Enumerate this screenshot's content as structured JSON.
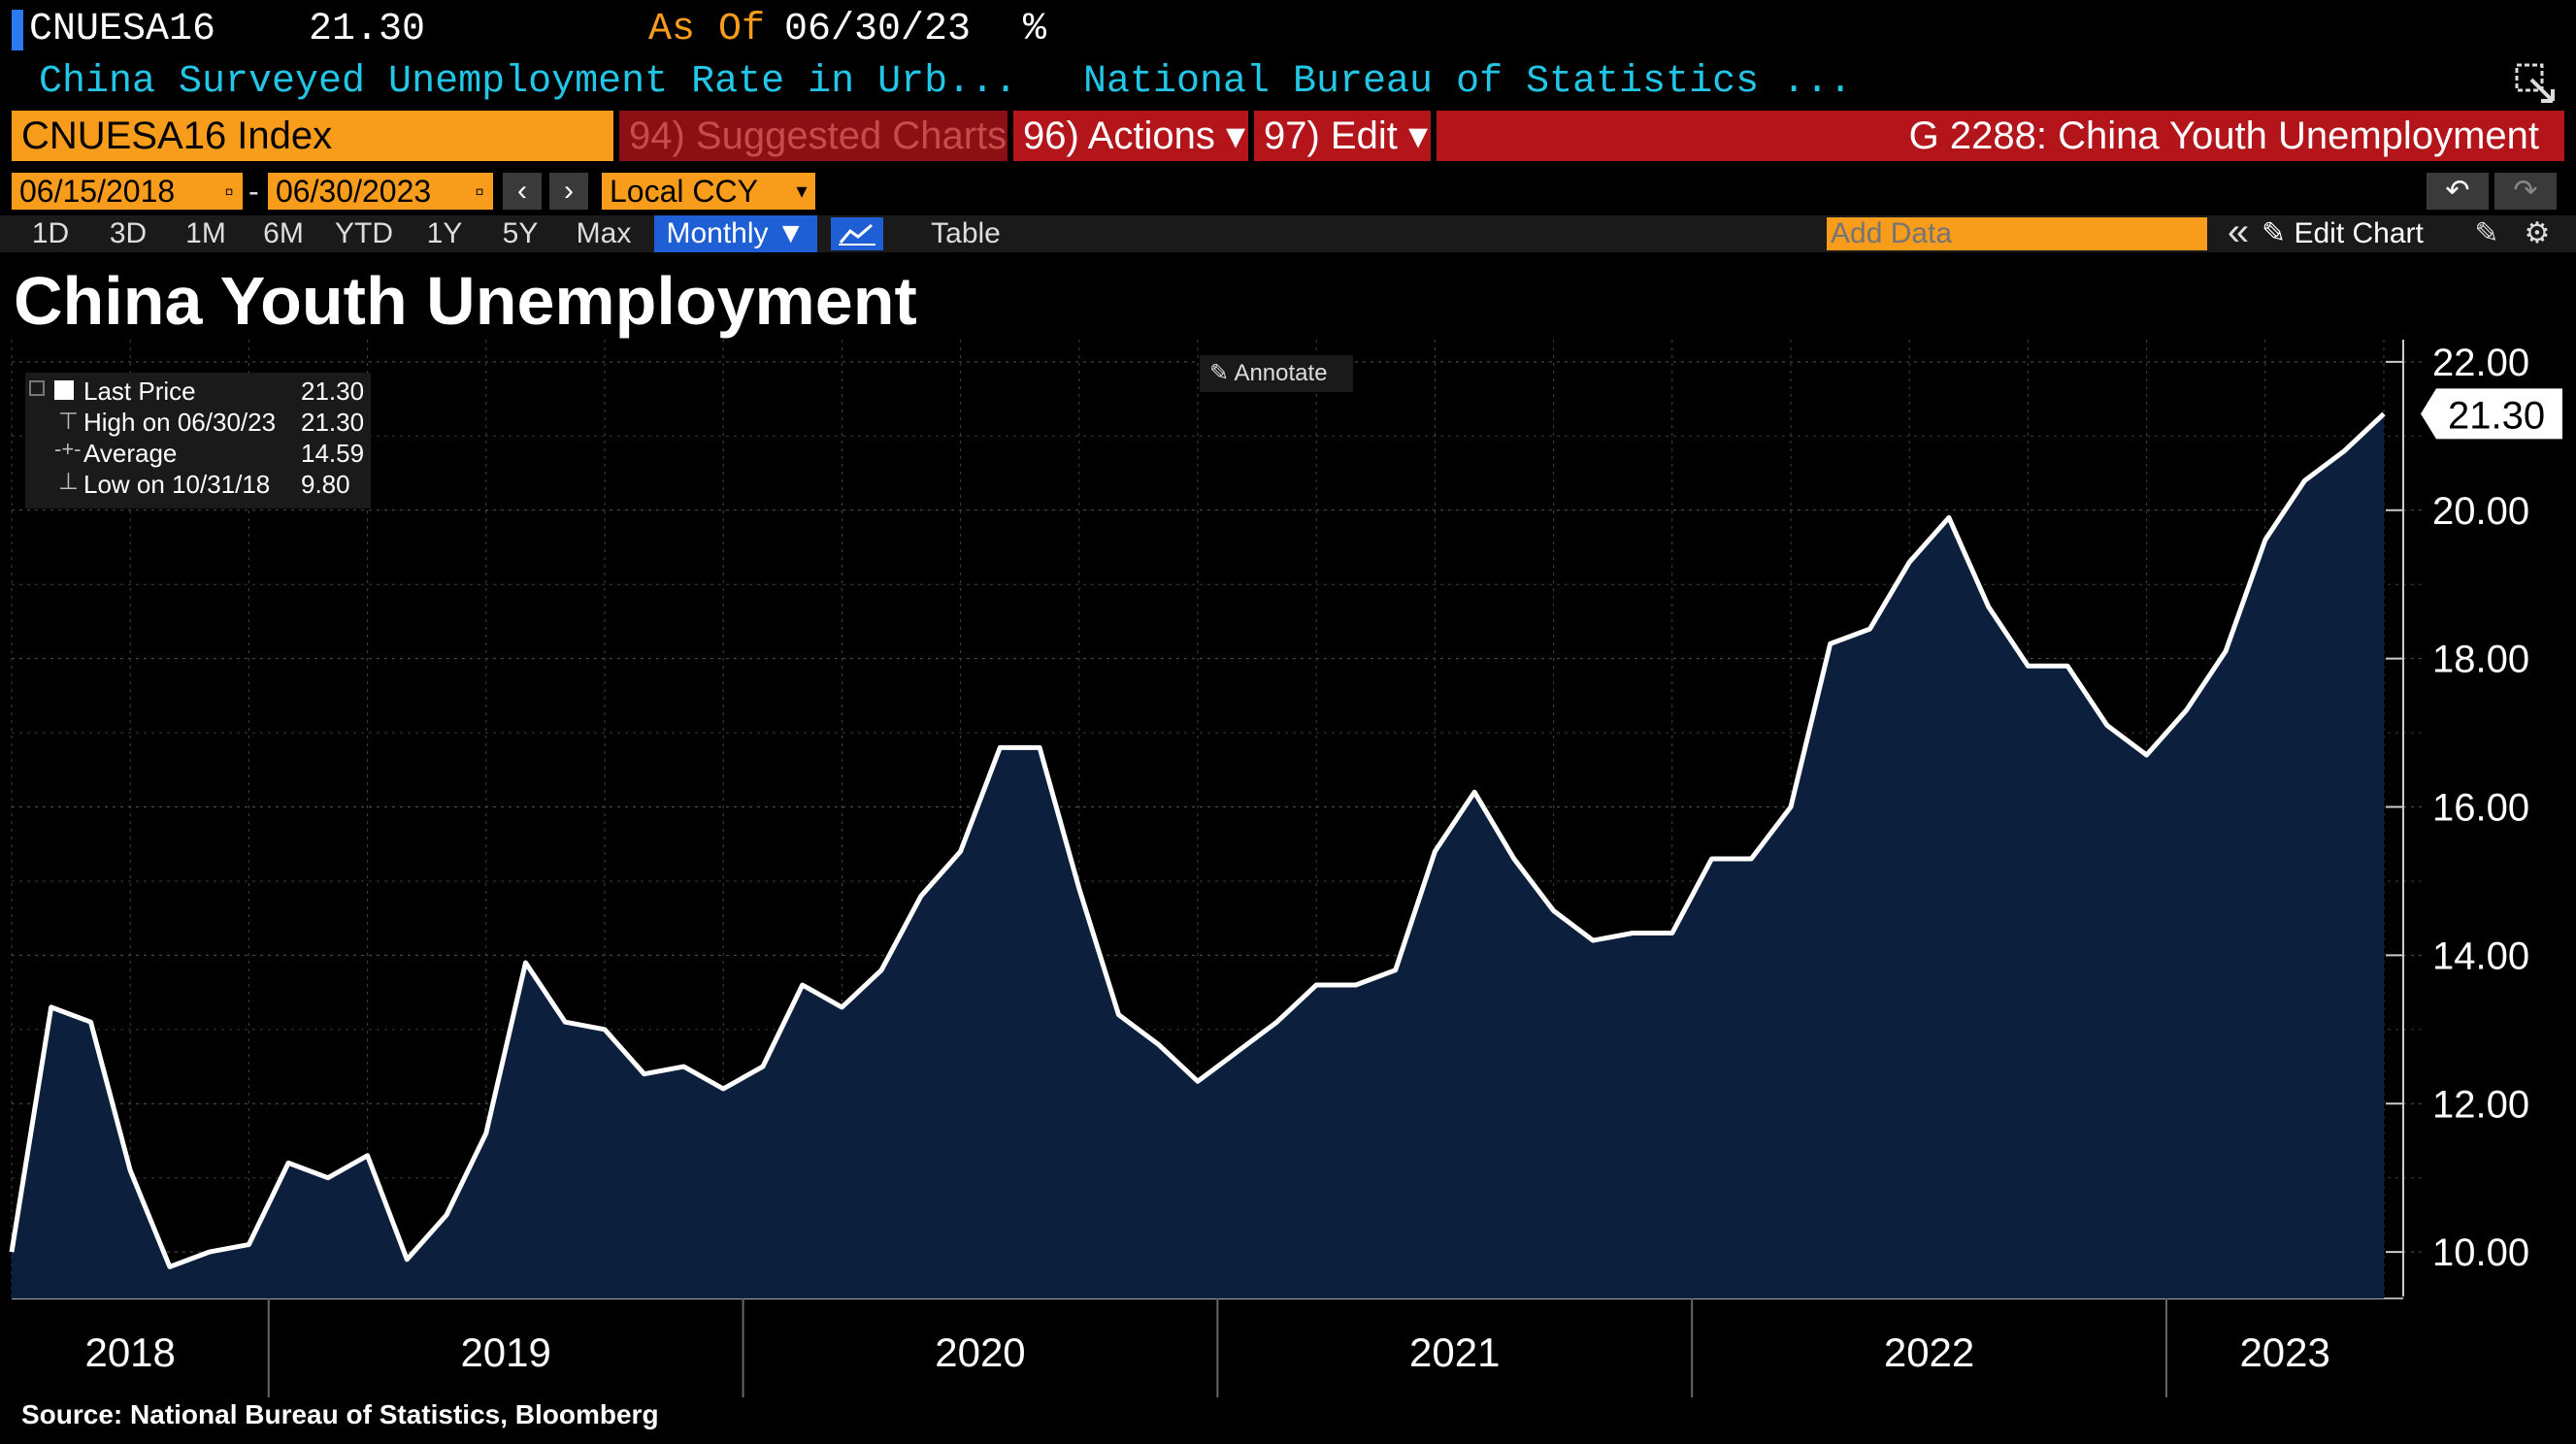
{
  "header": {
    "ticker": "CNUESA16",
    "last_value": "21.30",
    "as_of_label": "As Of",
    "as_of_date": "06/30/23",
    "unit": "%",
    "description": "China Surveyed Unemployment Rate in Urb...",
    "source_name": "National Bureau of Statistics ..."
  },
  "toolbar": {
    "security": "CNUESA16 Index",
    "suggested": "94) Suggested Charts",
    "actions": "96) Actions ▾",
    "edit": "97) Edit ▾",
    "chart_id": "G 2288: China Youth Unemployment"
  },
  "range": {
    "start": "06/15/2018",
    "sep": "-",
    "end": "06/30/2023",
    "prev": "‹",
    "next": "›",
    "currency": "Local CCY"
  },
  "periods": [
    "1D",
    "3D",
    "1M",
    "6M",
    "YTD",
    "1Y",
    "5Y",
    "Max"
  ],
  "frequency": "Monthly ▼",
  "table_label": "Table",
  "add_data_placeholder": "Add Data",
  "edit_chart_label": "✎ Edit Chart",
  "collapse_label": "«",
  "annotate_label": "Annotate",
  "legend": {
    "rows": [
      {
        "label": "Last Price",
        "value": "21.30"
      },
      {
        "label": "High on 06/30/23",
        "value": "21.30"
      },
      {
        "label": "Average",
        "value": "14.59"
      },
      {
        "label": "Low on 10/31/18",
        "value": "9.80"
      }
    ]
  },
  "source": "Source: National Bureau of Statistics, Bloomberg",
  "colors": {
    "background": "#000000",
    "area_fill": "#0c1f3d",
    "line": "#ffffff",
    "ticker_accent": "#f89c1c",
    "description": "#22c7e8",
    "toolbar_red": "#b3151b",
    "period_active": "#1f5fd6"
  },
  "chart_data": {
    "type": "area",
    "title": "China Youth Unemployment",
    "x": [
      "2018-06",
      "2018-07",
      "2018-08",
      "2018-09",
      "2018-10",
      "2018-11",
      "2018-12",
      "2019-01",
      "2019-02",
      "2019-03",
      "2019-04",
      "2019-05",
      "2019-06",
      "2019-07",
      "2019-08",
      "2019-09",
      "2019-10",
      "2019-11",
      "2019-12",
      "2020-01",
      "2020-02",
      "2020-03",
      "2020-04",
      "2020-05",
      "2020-06",
      "2020-07",
      "2020-08",
      "2020-09",
      "2020-10",
      "2020-11",
      "2020-12",
      "2021-01",
      "2021-02",
      "2021-03",
      "2021-04",
      "2021-05",
      "2021-06",
      "2021-07",
      "2021-08",
      "2021-09",
      "2021-10",
      "2021-11",
      "2021-12",
      "2022-01",
      "2022-02",
      "2022-03",
      "2022-04",
      "2022-05",
      "2022-06",
      "2022-07",
      "2022-08",
      "2022-09",
      "2022-10",
      "2022-11",
      "2022-12",
      "2023-01",
      "2023-02",
      "2023-03",
      "2023-04",
      "2023-05",
      "2023-06"
    ],
    "series": [
      {
        "values": [
          10.0,
          13.3,
          13.1,
          11.1,
          9.8,
          10.0,
          10.1,
          11.2,
          11.0,
          11.3,
          9.9,
          10.5,
          11.6,
          13.9,
          13.1,
          13.0,
          12.4,
          12.5,
          12.2,
          12.5,
          13.6,
          13.3,
          13.8,
          14.8,
          15.4,
          16.8,
          16.8,
          14.9,
          13.2,
          12.8,
          12.3,
          12.7,
          13.1,
          13.6,
          13.6,
          13.8,
          15.4,
          16.2,
          15.3,
          14.6,
          14.2,
          14.3,
          14.3,
          15.3,
          15.3,
          16.0,
          18.2,
          18.4,
          19.3,
          19.9,
          18.7,
          17.9,
          17.9,
          17.1,
          16.7,
          17.3,
          18.1,
          19.6,
          20.4,
          20.8,
          21.3
        ]
      }
    ],
    "ylim": [
      9.4,
      22.3
    ],
    "yticks": [
      "10.00",
      "12.00",
      "14.00",
      "16.00",
      "18.00",
      "20.00",
      "22.00"
    ],
    "year_labels": [
      "2018",
      "2019",
      "2020",
      "2021",
      "2022",
      "2023"
    ],
    "last_label": "21.30",
    "grid": true
  }
}
